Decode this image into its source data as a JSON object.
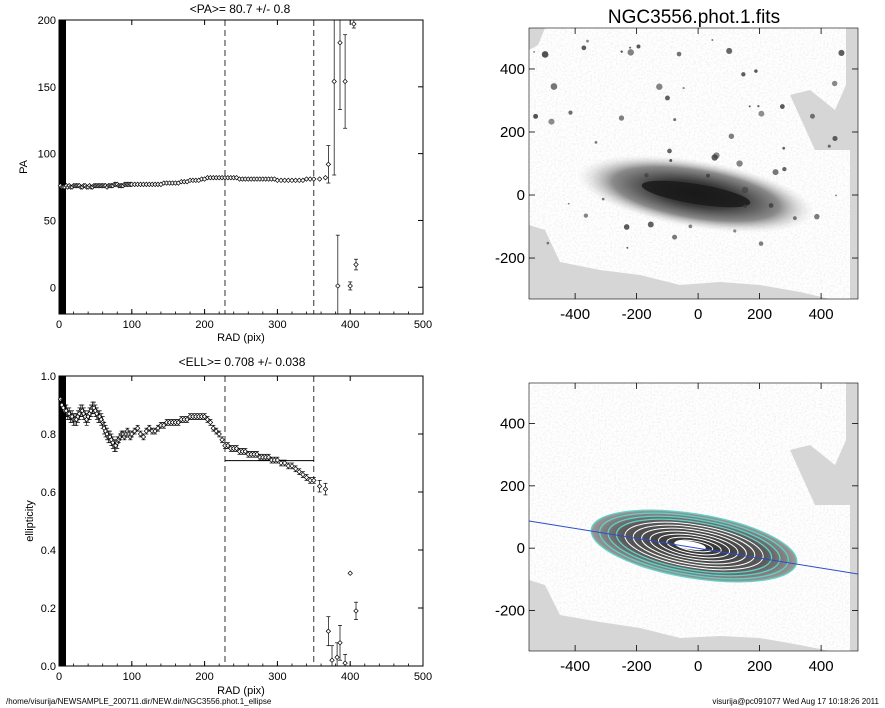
{
  "chart_data": [
    {
      "type": "scatter",
      "title": "<PA>=  80.7 +/-   0.8",
      "xlabel": "RAD (pix)",
      "ylabel": "PA",
      "xlim": [
        0,
        500
      ],
      "ylim": [
        -20,
        200
      ],
      "xticks": [
        0,
        100,
        200,
        300,
        400,
        500
      ],
      "yticks": [
        0,
        50,
        100,
        150,
        200
      ],
      "vlines": [
        228,
        350
      ],
      "grid": false,
      "series": [
        {
          "marker": "diamond",
          "x": [
            2,
            4,
            6,
            8,
            10,
            12,
            14,
            16,
            18,
            20,
            22,
            24,
            26,
            28,
            30,
            32,
            34,
            36,
            38,
            40,
            42,
            44,
            46,
            48,
            50,
            52,
            54,
            56,
            58,
            60,
            62,
            64,
            66,
            68,
            70,
            72,
            74,
            76,
            78,
            80,
            82,
            84,
            86,
            88,
            90,
            92,
            94,
            96,
            98,
            100,
            104,
            108,
            112,
            116,
            120,
            124,
            128,
            132,
            136,
            140,
            144,
            148,
            152,
            156,
            160,
            164,
            168,
            172,
            176,
            180,
            184,
            188,
            192,
            196,
            200,
            204,
            208,
            212,
            216,
            220,
            224,
            228,
            232,
            236,
            240,
            244,
            248,
            252,
            256,
            260,
            264,
            268,
            272,
            276,
            280,
            284,
            288,
            292,
            296,
            300,
            305,
            310,
            315,
            320,
            325,
            330,
            335,
            340,
            345,
            350,
            358,
            366
          ],
          "y": [
            76,
            75,
            75,
            75,
            76,
            75,
            76,
            75,
            75,
            76,
            76,
            76,
            76,
            76,
            75,
            75,
            76,
            76,
            75,
            75,
            76,
            75,
            75,
            76,
            76,
            76,
            76,
            76,
            76,
            76,
            76,
            76,
            75,
            76,
            76,
            76,
            76,
            77,
            77,
            77,
            76,
            76,
            76,
            76,
            77,
            77,
            77,
            77,
            77,
            77,
            77,
            77,
            77,
            77,
            77,
            77,
            77,
            77,
            77,
            77,
            78,
            78,
            78,
            78,
            78,
            78,
            79,
            79,
            79,
            80,
            80,
            80,
            80,
            81,
            81,
            82,
            82,
            82,
            82,
            82,
            82,
            82,
            82,
            82,
            82,
            82,
            81,
            81,
            81,
            81,
            81,
            81,
            81,
            81,
            81,
            81,
            81,
            81,
            81,
            80,
            80,
            80,
            80,
            80,
            80,
            80,
            80,
            81,
            81,
            81,
            81,
            82
          ]
        },
        {
          "marker": "diamond",
          "errorbars": true,
          "x": [
            370,
            378,
            383,
            386,
            393,
            400,
            405,
            408
          ],
          "y": [
            92,
            154,
            1,
            183,
            154,
            1,
            197,
            17
          ],
          "err": [
            14,
            70,
            38,
            50,
            35,
            3,
            3,
            4
          ]
        }
      ]
    },
    {
      "type": "scatter",
      "title": "<ELL>= 0.708 +/-  0.038",
      "xlabel": "RAD (pix)",
      "ylabel": "ellipticity",
      "xlim": [
        0,
        500
      ],
      "ylim": [
        0,
        1
      ],
      "xticks": [
        0,
        100,
        200,
        300,
        400,
        500
      ],
      "yticks": [
        "0.0",
        "0.2",
        "0.4",
        "0.6",
        "0.8",
        "1.0"
      ],
      "vlines": [
        228,
        350
      ],
      "hline": {
        "y": 0.708,
        "x": [
          228,
          350
        ]
      },
      "grid": false,
      "series": [
        {
          "marker": "diamond",
          "errorbars": true,
          "x": [
            2,
            4,
            6,
            8,
            10,
            12,
            14,
            16,
            18,
            20,
            22,
            24,
            26,
            28,
            30,
            32,
            34,
            36,
            38,
            40,
            42,
            44,
            46,
            48,
            50,
            52,
            54,
            56,
            58,
            60,
            62,
            64,
            66,
            68,
            70,
            72,
            74,
            76,
            78,
            80,
            82,
            84,
            86,
            88,
            90,
            92,
            94,
            96,
            98,
            100,
            104,
            108,
            112,
            116,
            120,
            124,
            128,
            132,
            136,
            140,
            144,
            148,
            152,
            156,
            160,
            164,
            168,
            172,
            176,
            180,
            184,
            188,
            192,
            196,
            200,
            204,
            208,
            212,
            216,
            220,
            224,
            228,
            232,
            236,
            240,
            244,
            248,
            252,
            256,
            260,
            264,
            268,
            272,
            276,
            280,
            284,
            288,
            292,
            296,
            300,
            305,
            310,
            315,
            320,
            325,
            330,
            335,
            340,
            345,
            350,
            358,
            366
          ],
          "y": [
            0.92,
            0.9,
            0.89,
            0.88,
            0.88,
            0.87,
            0.87,
            0.86,
            0.86,
            0.85,
            0.85,
            0.85,
            0.86,
            0.87,
            0.88,
            0.88,
            0.87,
            0.86,
            0.85,
            0.86,
            0.87,
            0.88,
            0.89,
            0.89,
            0.88,
            0.87,
            0.86,
            0.86,
            0.85,
            0.84,
            0.82,
            0.81,
            0.8,
            0.79,
            0.79,
            0.78,
            0.77,
            0.76,
            0.76,
            0.77,
            0.78,
            0.79,
            0.8,
            0.8,
            0.79,
            0.8,
            0.81,
            0.8,
            0.79,
            0.8,
            0.81,
            0.82,
            0.8,
            0.79,
            0.81,
            0.82,
            0.81,
            0.81,
            0.82,
            0.83,
            0.83,
            0.84,
            0.84,
            0.84,
            0.84,
            0.84,
            0.85,
            0.85,
            0.85,
            0.86,
            0.86,
            0.86,
            0.86,
            0.86,
            0.86,
            0.85,
            0.84,
            0.82,
            0.81,
            0.8,
            0.78,
            0.76,
            0.76,
            0.75,
            0.75,
            0.75,
            0.74,
            0.74,
            0.74,
            0.73,
            0.73,
            0.73,
            0.73,
            0.72,
            0.72,
            0.72,
            0.72,
            0.71,
            0.71,
            0.71,
            0.7,
            0.7,
            0.69,
            0.69,
            0.68,
            0.67,
            0.66,
            0.65,
            0.64,
            0.64,
            0.62,
            0.61
          ],
          "err": [
            0.02,
            0.02,
            0.02,
            0.02,
            0.02,
            0.02,
            0.02,
            0.02,
            0.02,
            0.02,
            0.02,
            0.02,
            0.02,
            0.02,
            0.02,
            0.02,
            0.02,
            0.02,
            0.02,
            0.02,
            0.02,
            0.02,
            0.02,
            0.02,
            0.02,
            0.02,
            0.02,
            0.02,
            0.02,
            0.02,
            0.02,
            0.02,
            0.02,
            0.02,
            0.02,
            0.02,
            0.02,
            0.02,
            0.02,
            0.02,
            0.01,
            0.01,
            0.01,
            0.01,
            0.01,
            0.01,
            0.01,
            0.01,
            0.01,
            0.01,
            0.01,
            0.01,
            0.01,
            0.01,
            0.01,
            0.01,
            0.01,
            0.01,
            0.01,
            0.01,
            0.01,
            0.01,
            0.01,
            0.01,
            0.01,
            0.01,
            0.01,
            0.01,
            0.01,
            0.01,
            0.01,
            0.01,
            0.01,
            0.01,
            0.01,
            0.01,
            0.01,
            0.01,
            0.01,
            0.01,
            0.01,
            0.01,
            0.01,
            0.01,
            0.01,
            0.01,
            0.01,
            0.01,
            0.01,
            0.01,
            0.01,
            0.01,
            0.01,
            0.01,
            0.01,
            0.01,
            0.01,
            0.01,
            0.01,
            0.01,
            0.01,
            0.01,
            0.01,
            0.01,
            0.01,
            0.01,
            0.01,
            0.01,
            0.01,
            0.01,
            0.02,
            0.02
          ]
        },
        {
          "marker": "diamond",
          "errorbars": true,
          "x": [
            370,
            375,
            382,
            386,
            393,
            400,
            408
          ],
          "y": [
            0.12,
            0.02,
            0.03,
            0.08,
            0.01,
            0.32,
            0.19
          ],
          "err": [
            0.05,
            0.05,
            0.05,
            0.06,
            0.03,
            0.0,
            0.03
          ]
        }
      ]
    },
    {
      "type": "heatmap",
      "title": "NGC3556.phot.1.fits",
      "xlim": [
        -550,
        520
      ],
      "ylim": [
        -330,
        530
      ],
      "xticks": [
        -400,
        -200,
        0,
        200,
        400
      ],
      "yticks": [
        -200,
        0,
        200,
        400
      ],
      "colormap": "gray (inverted)",
      "galaxy": {
        "center": [
          0,
          0
        ],
        "position_angle_deg": 80.7,
        "ellipticity": 0.708
      }
    },
    {
      "type": "heatmap",
      "title": "",
      "xlim": [
        -550,
        520
      ],
      "ylim": [
        -330,
        530
      ],
      "xticks": [
        -400,
        -200,
        0,
        200,
        400
      ],
      "yticks": [
        -200,
        0,
        200,
        400
      ],
      "colormap": "gray (inverted)",
      "overlay": "isophote ellipses with major-axis line",
      "contour_colors": [
        "#5fd3c8",
        "#ffffff",
        "#2a6cb8"
      ]
    }
  ],
  "footer": {
    "left": "/home/visurija/NEWSAMPLE_200711.dir/NEW.dir/NGC3556.phot.1_ellipse",
    "right": "visurija@pc091077  Wed Aug 17 10:18:26 2011"
  }
}
